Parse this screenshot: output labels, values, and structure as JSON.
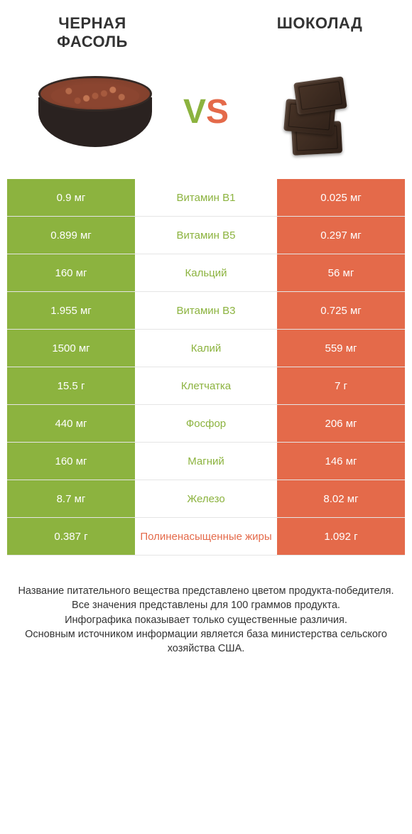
{
  "left_food": "ЧЕРНАЯ ФАСОЛЬ",
  "right_food": "ШОКОЛАД",
  "vs_text": "VS",
  "colors": {
    "left_win": "#8cb33f",
    "right_win": "#e46a4a",
    "v_color": "#8cb33f",
    "s_color": "#e46a4a",
    "bg": "#ffffff",
    "text": "#333333",
    "border": "#e5e5e5"
  },
  "rows": [
    {
      "left": "0.9 мг",
      "nutrient": "Витамин B1",
      "right": "0.025 мг",
      "winner": "left"
    },
    {
      "left": "0.899 мг",
      "nutrient": "Витамин B5",
      "right": "0.297 мг",
      "winner": "left"
    },
    {
      "left": "160 мг",
      "nutrient": "Кальций",
      "right": "56 мг",
      "winner": "left"
    },
    {
      "left": "1.955 мг",
      "nutrient": "Витамин B3",
      "right": "0.725 мг",
      "winner": "left"
    },
    {
      "left": "1500 мг",
      "nutrient": "Калий",
      "right": "559 мг",
      "winner": "left"
    },
    {
      "left": "15.5 г",
      "nutrient": "Клетчатка",
      "right": "7 г",
      "winner": "left"
    },
    {
      "left": "440 мг",
      "nutrient": "Фосфор",
      "right": "206 мг",
      "winner": "left"
    },
    {
      "left": "160 мг",
      "nutrient": "Магний",
      "right": "146 мг",
      "winner": "left"
    },
    {
      "left": "8.7 мг",
      "nutrient": "Железо",
      "right": "8.02 мг",
      "winner": "left"
    },
    {
      "left": "0.387 г",
      "nutrient": "Полиненасыщенные жиры",
      "right": "1.092 г",
      "winner": "right"
    }
  ],
  "footer": [
    "Название питательного вещества представлено цветом продукта-победителя.",
    "Все значения представлены для 100 граммов продукта.",
    "Инфографика показывает только существенные различия.",
    "Основным источником информации является база министерства сельского хозяйства США."
  ]
}
